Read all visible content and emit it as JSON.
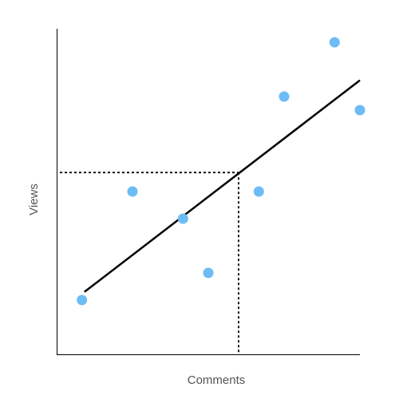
{
  "chart_data": {
    "type": "scatter",
    "title": "",
    "xlabel": "Comments",
    "ylabel": "Views",
    "xlim": [
      0,
      12
    ],
    "ylim": [
      0,
      12
    ],
    "grid": false,
    "point_color": "#6cbcf5",
    "line_color": "#000000",
    "series": [
      {
        "points": [
          {
            "x": 1,
            "y": 2
          },
          {
            "x": 3,
            "y": 6
          },
          {
            "x": 5,
            "y": 5
          },
          {
            "x": 6,
            "y": 3
          },
          {
            "x": 8,
            "y": 6
          },
          {
            "x": 9,
            "y": 9.5
          },
          {
            "x": 11,
            "y": 11.5
          },
          {
            "x": 12,
            "y": 9
          }
        ]
      }
    ],
    "trendline": {
      "x": [
        1.1,
        12
      ],
      "y": [
        2.3,
        10.1
      ]
    },
    "reference": {
      "x": 7.2,
      "y": 6.7
    }
  }
}
